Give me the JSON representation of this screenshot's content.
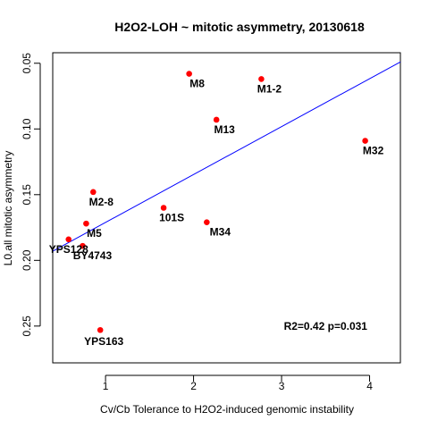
{
  "chart_data": {
    "type": "scatter",
    "title": "H2O2-LOH ~ mitotic asymmetry, 20130618",
    "xlabel": "Cv/Cb Tolerance to H2O2-induced genomic instability",
    "ylabel": "L0.all mitotic asymmetry",
    "xlim": [
      0.4,
      4.35
    ],
    "ylim": [
      0.042,
      0.278
    ],
    "y_reversed": true,
    "x_ticks": [
      1,
      2,
      3,
      4
    ],
    "y_ticks": [
      0.05,
      0.1,
      0.15,
      0.2,
      0.25
    ],
    "x_tick_labels": [
      "1",
      "2",
      "3",
      "4"
    ],
    "y_tick_labels": [
      "0.05",
      "0.10",
      "0.15",
      "0.20",
      "0.25"
    ],
    "point_color": "#ff0000",
    "line_color": "#0000ff",
    "points": [
      {
        "name": "M8",
        "x": 1.95,
        "y": 0.058
      },
      {
        "name": "M1-2",
        "x": 2.77,
        "y": 0.062
      },
      {
        "name": "M13",
        "x": 2.26,
        "y": 0.093
      },
      {
        "name": "M32",
        "x": 3.95,
        "y": 0.109
      },
      {
        "name": "M2-8",
        "x": 0.86,
        "y": 0.148
      },
      {
        "name": "101S",
        "x": 1.66,
        "y": 0.16
      },
      {
        "name": "M34",
        "x": 2.15,
        "y": 0.171
      },
      {
        "name": "M5",
        "x": 0.78,
        "y": 0.172
      },
      {
        "name": "YPS128",
        "x": 0.58,
        "y": 0.184
      },
      {
        "name": "BY4743",
        "x": 0.74,
        "y": 0.189
      },
      {
        "name": "YPS163",
        "x": 0.94,
        "y": 0.253
      }
    ],
    "regression_line": {
      "x1": 0.4,
      "y1": 0.193,
      "x2": 4.35,
      "y2": 0.049
    },
    "annotation": "R2=0.42 p=0.031",
    "annotation_position": {
      "x": 3.5,
      "y": 0.25
    }
  }
}
